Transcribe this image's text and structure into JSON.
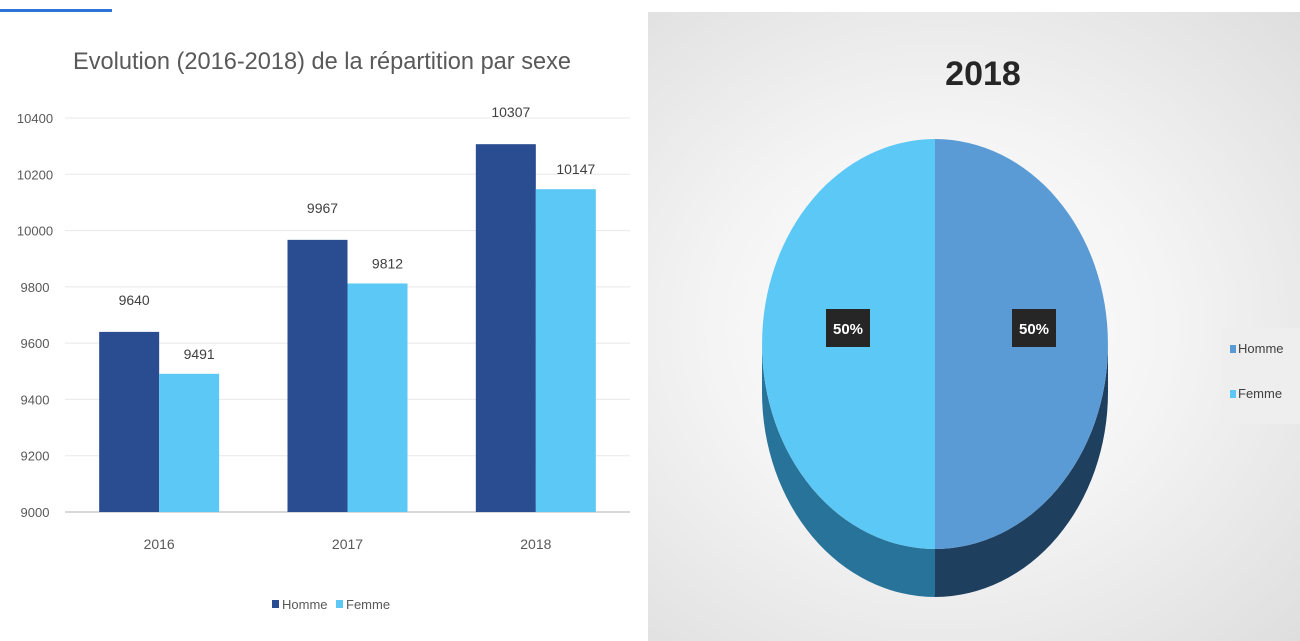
{
  "top_heading": {
    "color": "#2e74d6"
  },
  "chart_data": [
    {
      "type": "bar",
      "title": "Evolution (2016-2018) de la répartition par sexe",
      "categories": [
        "2016",
        "2017",
        "2018"
      ],
      "series": [
        {
          "name": "Homme",
          "values": [
            9640,
            9967,
            10307
          ],
          "color": "#2a4d92"
        },
        {
          "name": "Femme",
          "values": [
            9491,
            9812,
            10147
          ],
          "color": "#5bc8f5"
        }
      ],
      "ylim": [
        9000,
        10400
      ],
      "yticks": [
        9000,
        9200,
        9400,
        9600,
        9800,
        10000,
        10200,
        10400
      ],
      "grid": true,
      "legend": "bottom"
    },
    {
      "type": "pie",
      "title": "2018",
      "slices": [
        {
          "name": "Homme",
          "value": 50,
          "label": "50%",
          "color": "#5b9bd5"
        },
        {
          "name": "Femme",
          "value": 50,
          "label": "50%",
          "color": "#5bc8f5"
        }
      ],
      "legend": "right",
      "style": "3d"
    }
  ]
}
